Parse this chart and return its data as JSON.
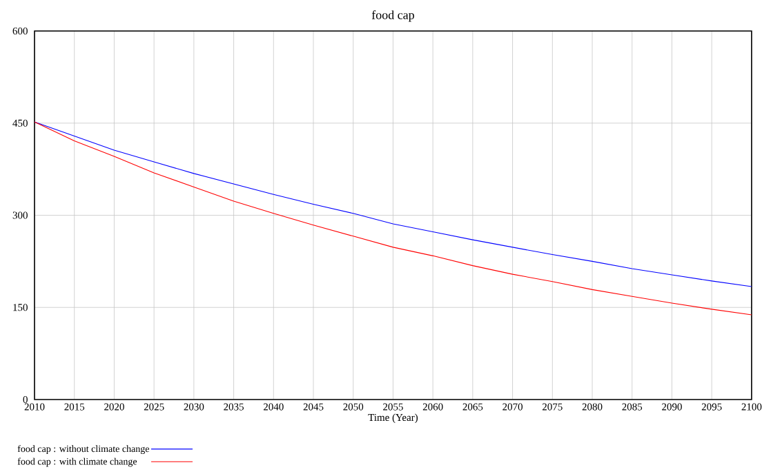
{
  "chart_data": {
    "type": "line",
    "title": "food cap",
    "xlabel": "Time (Year)",
    "x": [
      2010,
      2015,
      2020,
      2025,
      2030,
      2035,
      2040,
      2045,
      2050,
      2055,
      2060,
      2065,
      2070,
      2075,
      2080,
      2085,
      2090,
      2095,
      2100
    ],
    "series": [
      {
        "name": "food cap : without climate change",
        "color": "#0000ff",
        "values": [
          452,
          429,
          406,
          387,
          368,
          351,
          334,
          318,
          303,
          286,
          273,
          260,
          248,
          236,
          225,
          213,
          203,
          193,
          184
        ]
      },
      {
        "name": "food cap : with climate change",
        "color": "#ff0000",
        "values": [
          452,
          421,
          396,
          369,
          346,
          323,
          303,
          284,
          266,
          248,
          234,
          218,
          204,
          192,
          179,
          168,
          157,
          147,
          138
        ]
      }
    ],
    "xlim": [
      2010,
      2100
    ],
    "xticks": [
      2010,
      2015,
      2020,
      2025,
      2030,
      2035,
      2040,
      2045,
      2050,
      2055,
      2060,
      2065,
      2070,
      2075,
      2080,
      2085,
      2090,
      2095,
      2100
    ],
    "ylim": [
      0,
      600
    ],
    "yticks": [
      0,
      150,
      300,
      450,
      600
    ],
    "grid": true,
    "legend": "bottom"
  }
}
